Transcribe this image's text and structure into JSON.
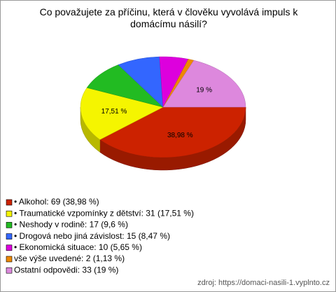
{
  "chart_data": {
    "type": "pie",
    "title": "Co považujete za příčinu, která v člověku vyvolává impuls k domácímu násilí?",
    "categories": [
      "• Alkohol: 69 (38,98 %)",
      "• Traumatické vzpomínky z dětství: 31 (17,51 %)",
      "• Neshody v rodině: 17 (9,6 %)",
      "• Drogová nebo jiná závislost: 15 (8,47 %)",
      "• Ekonomická situace: 10 (5,65 %)",
      "vše výše uvedené: 2 (1,13 %)",
      "Ostatní odpovědi: 33 (19 %)"
    ],
    "values": [
      38.98,
      17.51,
      9.6,
      8.47,
      5.65,
      1.13,
      19
    ],
    "value_labels": [
      "38,98 %",
      "17,51 %",
      null,
      null,
      null,
      null,
      "19 %"
    ],
    "colors": [
      "#cc2200",
      "#f5f500",
      "#22bb22",
      "#3366ff",
      "#dd00dd",
      "#ee8800",
      "#dd88dd"
    ],
    "source": "zdroj: https://domaci-nasili-1.vyplnto.cz"
  }
}
